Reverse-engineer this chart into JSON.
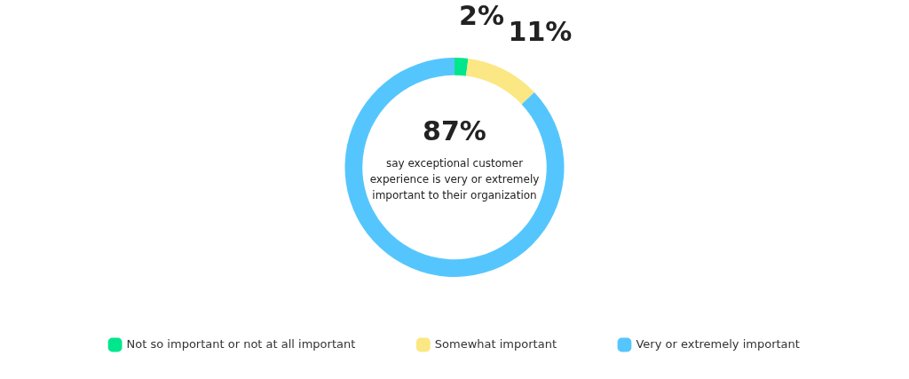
{
  "chart_data": {
    "type": "donut",
    "categories": [
      "Not so important or not at all important",
      "Somewhat important",
      "Very or extremely important"
    ],
    "values": [
      2,
      11,
      87
    ],
    "colors": [
      "#00e68c",
      "#fbe783",
      "#55c6fd"
    ],
    "value_labels": [
      "2%",
      "11%",
      "87%"
    ],
    "annotations": [
      "say exceptional customer experience is very or extremely important to their organization"
    ],
    "legend": "bottom"
  }
}
